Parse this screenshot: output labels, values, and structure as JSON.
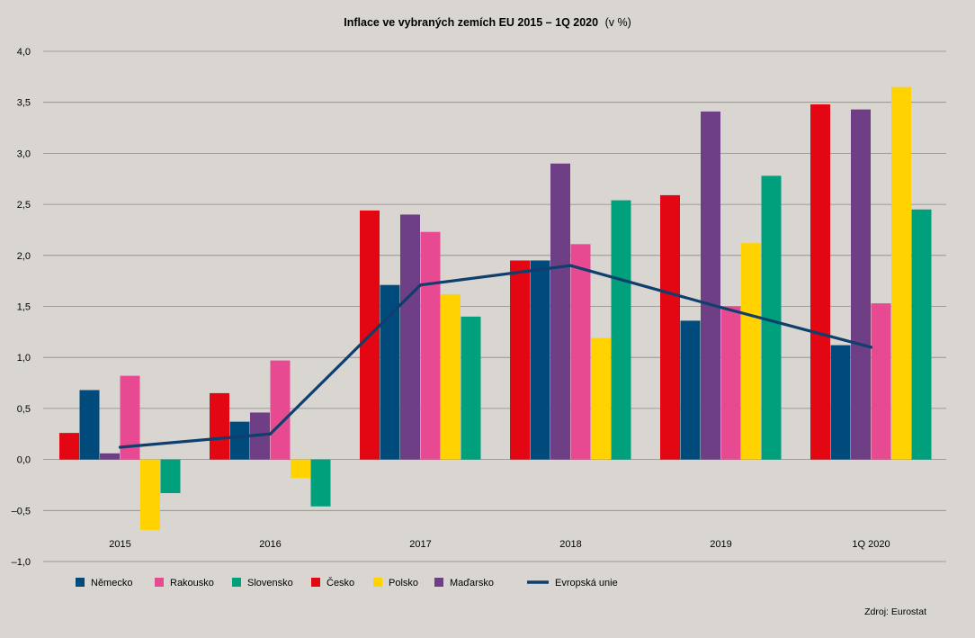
{
  "chart_data": {
    "type": "bar",
    "title": "Inflace ve vybraných zemích EU 2015 – 1Q 2020",
    "title_suffix": "(v %)",
    "xlabel": "",
    "ylabel": "",
    "ylim": [
      -1.0,
      4.0
    ],
    "yticks": [
      4.0,
      3.5,
      3.0,
      2.5,
      2.0,
      1.5,
      1.0,
      0.5,
      0.0,
      -0.5,
      -1.0
    ],
    "ytick_labels": [
      "4,0",
      "3,5",
      "3,0",
      "2,5",
      "2,0",
      "1,5",
      "1,0",
      "0,5",
      "0,0",
      "–0,5",
      "–1,0"
    ],
    "grid": true,
    "legend_position": "bottom-left",
    "categories": [
      "2015",
      "2016",
      "2017",
      "2018",
      "2019",
      "1Q 2020"
    ],
    "series": [
      {
        "name": "Česko",
        "color": "#e30613",
        "values": [
          0.26,
          0.65,
          2.44,
          1.95,
          2.59,
          3.48
        ]
      },
      {
        "name": "Německo",
        "color": "#004a7c",
        "values": [
          0.68,
          0.37,
          1.71,
          1.95,
          1.36,
          1.12
        ]
      },
      {
        "name": "Maďarsko",
        "color": "#6f3f86",
        "values": [
          0.06,
          0.46,
          2.4,
          2.9,
          3.41,
          3.43
        ]
      },
      {
        "name": "Rakousko",
        "color": "#e84a92",
        "values": [
          0.82,
          0.97,
          2.23,
          2.11,
          1.5,
          1.53
        ]
      },
      {
        "name": "Polsko",
        "color": "#ffd200",
        "values": [
          -0.69,
          -0.18,
          1.62,
          1.19,
          2.12,
          3.65
        ]
      },
      {
        "name": "Slovensko",
        "color": "#00a07d",
        "values": [
          -0.33,
          -0.46,
          1.4,
          2.54,
          2.78,
          2.45
        ]
      }
    ],
    "line_series": {
      "name": "Evropská unie",
      "color": "#0e3f6e",
      "values": [
        0.12,
        0.25,
        1.71,
        1.9,
        1.49,
        1.1
      ]
    },
    "legend_order": [
      "Německo",
      "Rakousko",
      "Slovensko",
      "Česko",
      "Polsko",
      "Maďarsko",
      "Evropská unie"
    ]
  },
  "source": "Zdroj: Eurostat"
}
